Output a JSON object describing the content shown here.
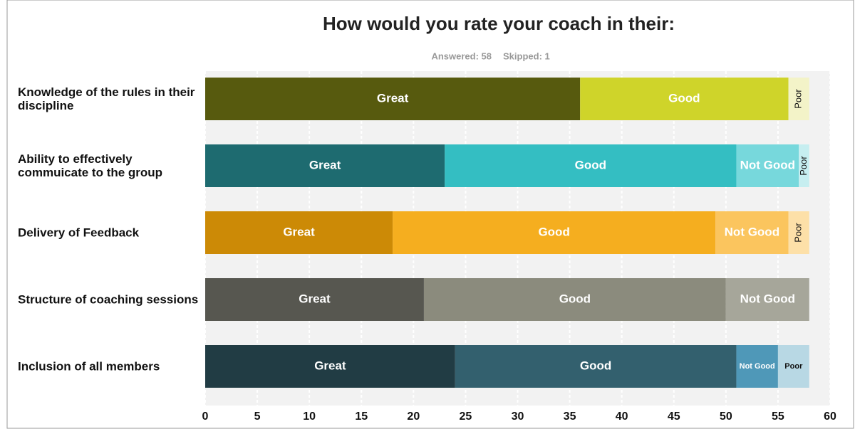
{
  "chart_data": {
    "type": "stacked-bar-horizontal",
    "title": "How would you rate your coach in their:",
    "answered": "Answered: 58",
    "skipped": "Skipped: 1",
    "categories": [
      "Knowledge of the rules in their discipline",
      "Ability to effectively commuicate to the group",
      "Delivery of Feedback",
      "Structure of coaching sessions",
      "Inclusion of all members"
    ],
    "series": [
      {
        "name": "Great",
        "values": [
          36,
          23,
          18,
          21,
          24
        ],
        "colors": [
          "#575a0e",
          "#1e6b70",
          "#cc8a06",
          "#575750",
          "#213c44"
        ]
      },
      {
        "name": "Good",
        "values": [
          20,
          28,
          31,
          29,
          27
        ],
        "colors": [
          "#cfd42a",
          "#34bec2",
          "#f5ae1f",
          "#8b8b7d",
          "#33606e"
        ]
      },
      {
        "name": "Not Good",
        "values": [
          0,
          6,
          7,
          8,
          4
        ],
        "colors": [
          "#e2e67a",
          "#77d8dc",
          "#fbc55e",
          "#a6a69a",
          "#4f98b8"
        ]
      },
      {
        "name": "Poor",
        "values": [
          2,
          1,
          2,
          0,
          3
        ],
        "colors": [
          "#f3f3c8",
          "#c6eef0",
          "#fde0a8",
          "#cfcfc8",
          "#b8d8e4"
        ]
      }
    ],
    "xlim": [
      0,
      60
    ],
    "xticks": [
      0,
      5,
      10,
      15,
      20,
      25,
      30,
      35,
      40,
      45,
      50,
      55,
      60
    ],
    "grid": true
  }
}
